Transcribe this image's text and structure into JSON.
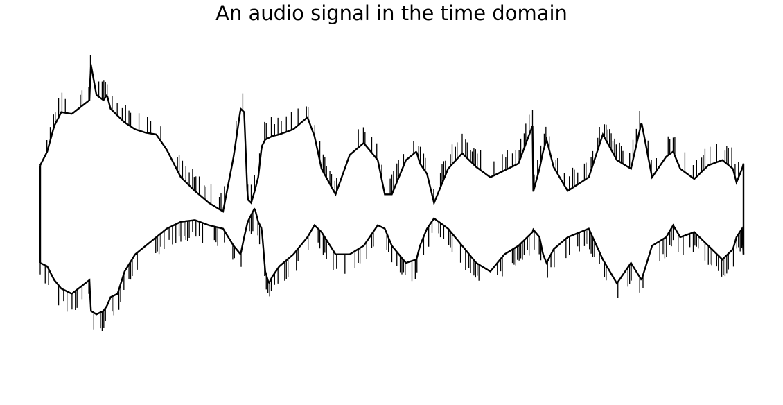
{
  "chart_data": {
    "type": "area",
    "title": "An audio signal in the time domain",
    "xlabel": "",
    "ylabel": "",
    "axes_visible": false,
    "grid": false,
    "legend": "none",
    "color": "#000000",
    "ylim": [
      -1.0,
      1.0
    ],
    "x": [
      0.0,
      0.01,
      0.02,
      0.03,
      0.045,
      0.07,
      0.072,
      0.08,
      0.09,
      0.095,
      0.1,
      0.11,
      0.12,
      0.135,
      0.15,
      0.165,
      0.18,
      0.2,
      0.22,
      0.24,
      0.26,
      0.275,
      0.285,
      0.29,
      0.295,
      0.3,
      0.305,
      0.31,
      0.315,
      0.32,
      0.325,
      0.33,
      0.34,
      0.36,
      0.38,
      0.39,
      0.4,
      0.42,
      0.44,
      0.46,
      0.48,
      0.49,
      0.5,
      0.52,
      0.535,
      0.54,
      0.55,
      0.56,
      0.58,
      0.6,
      0.62,
      0.64,
      0.66,
      0.68,
      0.7,
      0.7,
      0.71,
      0.715,
      0.72,
      0.73,
      0.75,
      0.78,
      0.8,
      0.82,
      0.84,
      0.855,
      0.87,
      0.89,
      0.9,
      0.91,
      0.93,
      0.95,
      0.97,
      0.985,
      0.99,
      0.998,
      1.0
    ],
    "envelope_upper": [
      0.27,
      0.35,
      0.5,
      0.58,
      0.57,
      0.65,
      0.86,
      0.68,
      0.65,
      0.68,
      0.6,
      0.56,
      0.52,
      0.48,
      0.46,
      0.45,
      0.36,
      0.2,
      0.12,
      0.05,
      0.0,
      0.32,
      0.6,
      0.58,
      0.07,
      0.05,
      0.12,
      0.2,
      0.38,
      0.42,
      0.43,
      0.44,
      0.45,
      0.48,
      0.55,
      0.44,
      0.25,
      0.1,
      0.33,
      0.4,
      0.3,
      0.1,
      0.1,
      0.3,
      0.35,
      0.28,
      0.22,
      0.05,
      0.25,
      0.34,
      0.26,
      0.2,
      0.24,
      0.28,
      0.5,
      0.1,
      0.25,
      0.35,
      0.42,
      0.26,
      0.12,
      0.2,
      0.45,
      0.3,
      0.25,
      0.52,
      0.2,
      0.32,
      0.35,
      0.25,
      0.19,
      0.27,
      0.3,
      0.25,
      0.17,
      0.25,
      0.28
    ],
    "envelope_lower": [
      -0.3,
      -0.32,
      -0.4,
      -0.45,
      -0.48,
      -0.4,
      -0.58,
      -0.6,
      -0.58,
      -0.55,
      -0.5,
      -0.48,
      -0.35,
      -0.25,
      -0.2,
      -0.15,
      -0.1,
      -0.06,
      -0.05,
      -0.08,
      -0.1,
      -0.2,
      -0.25,
      -0.15,
      -0.06,
      -0.02,
      0.02,
      -0.06,
      -0.1,
      -0.35,
      -0.42,
      -0.38,
      -0.32,
      -0.25,
      -0.15,
      -0.08,
      -0.12,
      -0.25,
      -0.25,
      -0.2,
      -0.08,
      -0.1,
      -0.2,
      -0.3,
      -0.28,
      -0.2,
      -0.1,
      -0.04,
      -0.1,
      -0.2,
      -0.3,
      -0.35,
      -0.25,
      -0.2,
      -0.12,
      -0.1,
      -0.15,
      -0.25,
      -0.3,
      -0.22,
      -0.15,
      -0.1,
      -0.28,
      -0.42,
      -0.3,
      -0.4,
      -0.2,
      -0.15,
      -0.08,
      -0.15,
      -0.12,
      -0.2,
      -0.28,
      -0.22,
      -0.15,
      -0.1,
      -0.25
    ]
  }
}
